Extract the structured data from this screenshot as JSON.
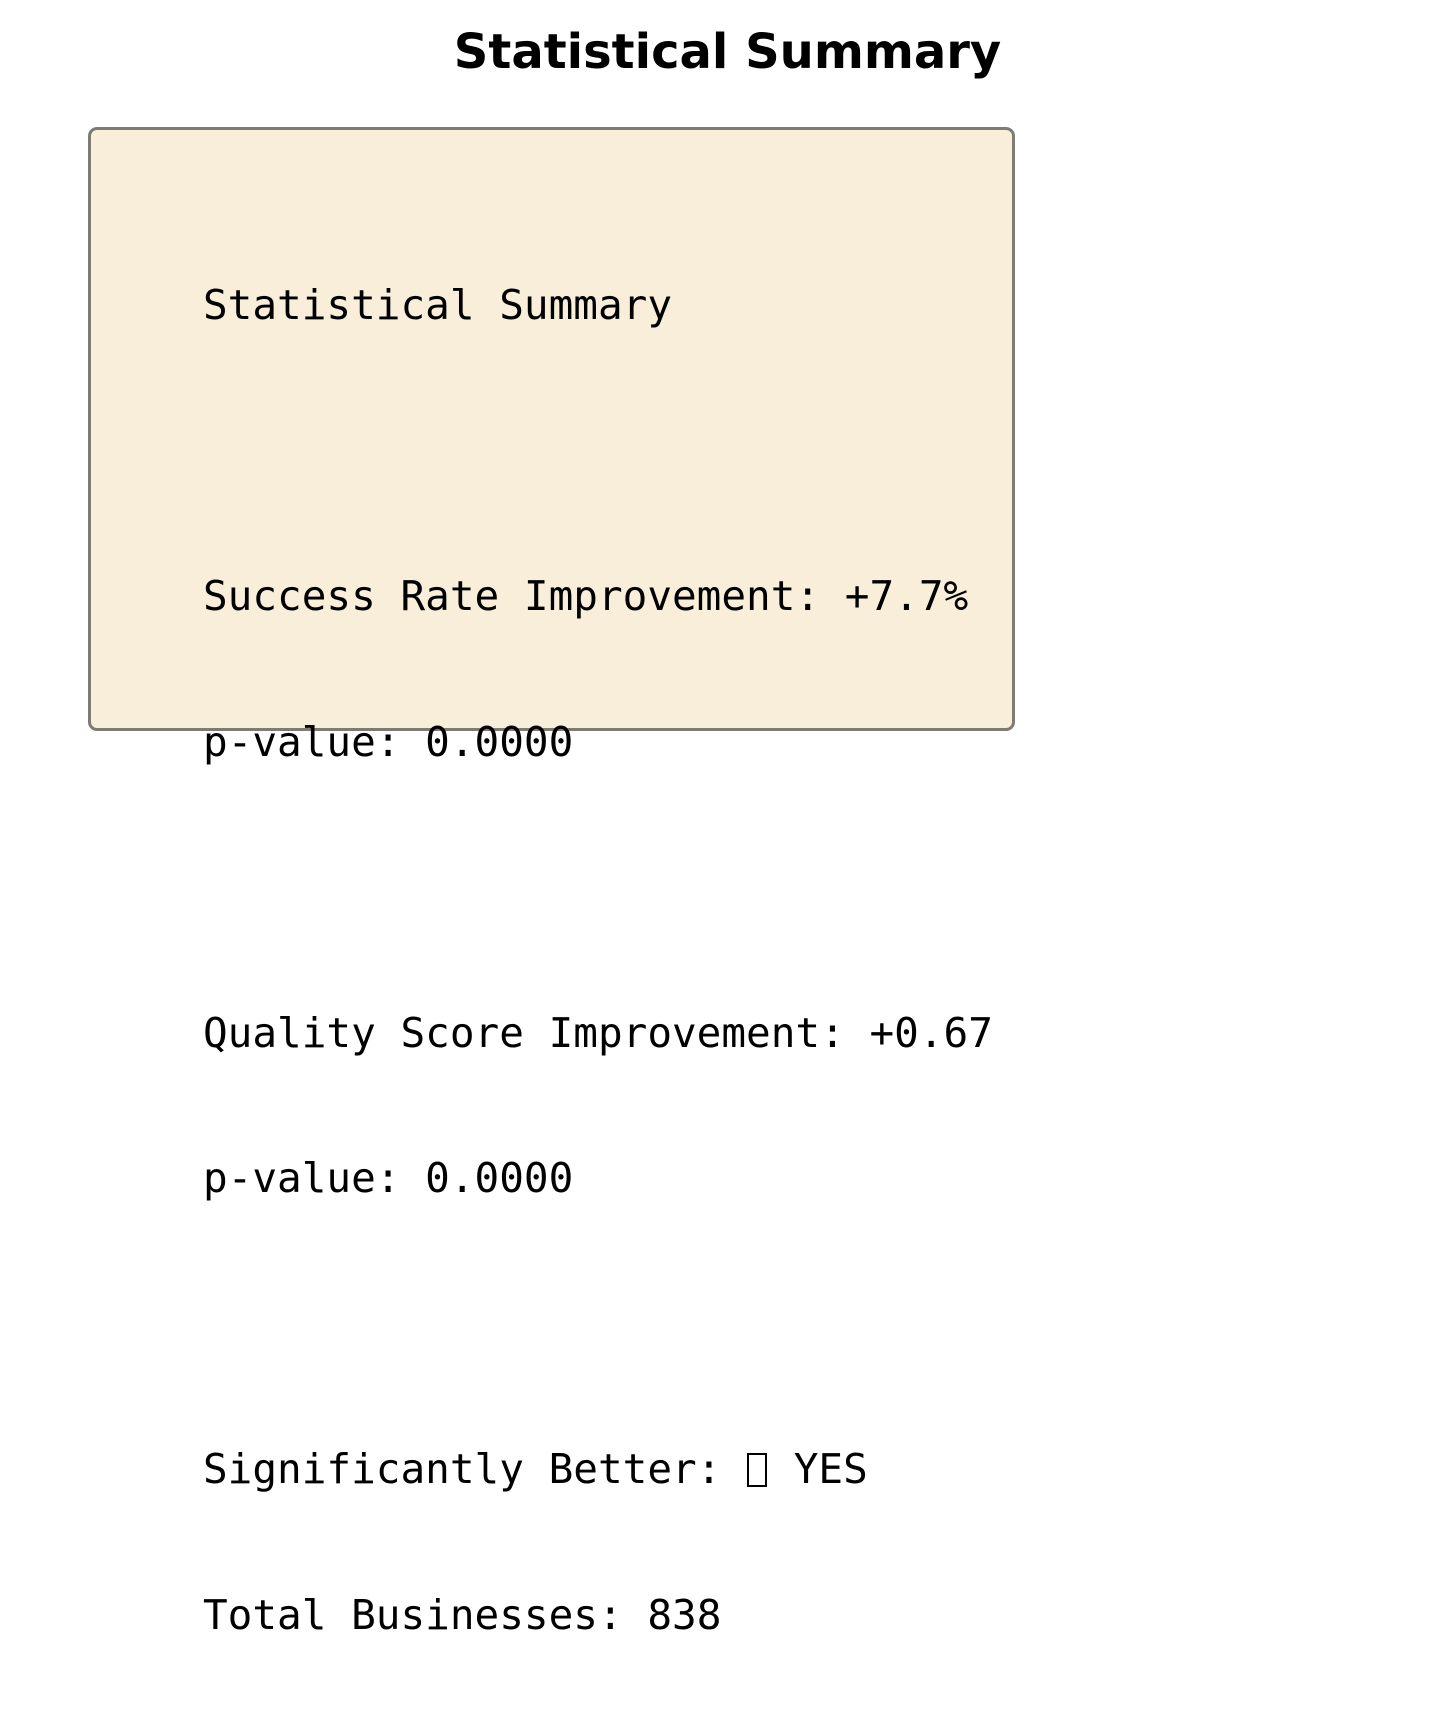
{
  "title": "Statistical Summary",
  "colors": {
    "box_background": "#f8eed9",
    "box_border": "#7e7a74",
    "text": "#000000"
  },
  "chart_data": {
    "type": "table",
    "title": "Statistical Summary",
    "heading": "Statistical Summary",
    "success_rate": {
      "label": "Success Rate Improvement:",
      "value": "+7.7%",
      "p_label": "p-value:",
      "p_value": "0.0000"
    },
    "quality_score": {
      "label": "Quality Score Improvement:",
      "value": "+0.67",
      "p_label": "p-value:",
      "p_value": "0.0000"
    },
    "significance": {
      "label": "Significantly Better:",
      "icon": "check-box-icon",
      "value": "YES"
    },
    "total_businesses": {
      "label": "Total Businesses:",
      "value": "838"
    }
  }
}
